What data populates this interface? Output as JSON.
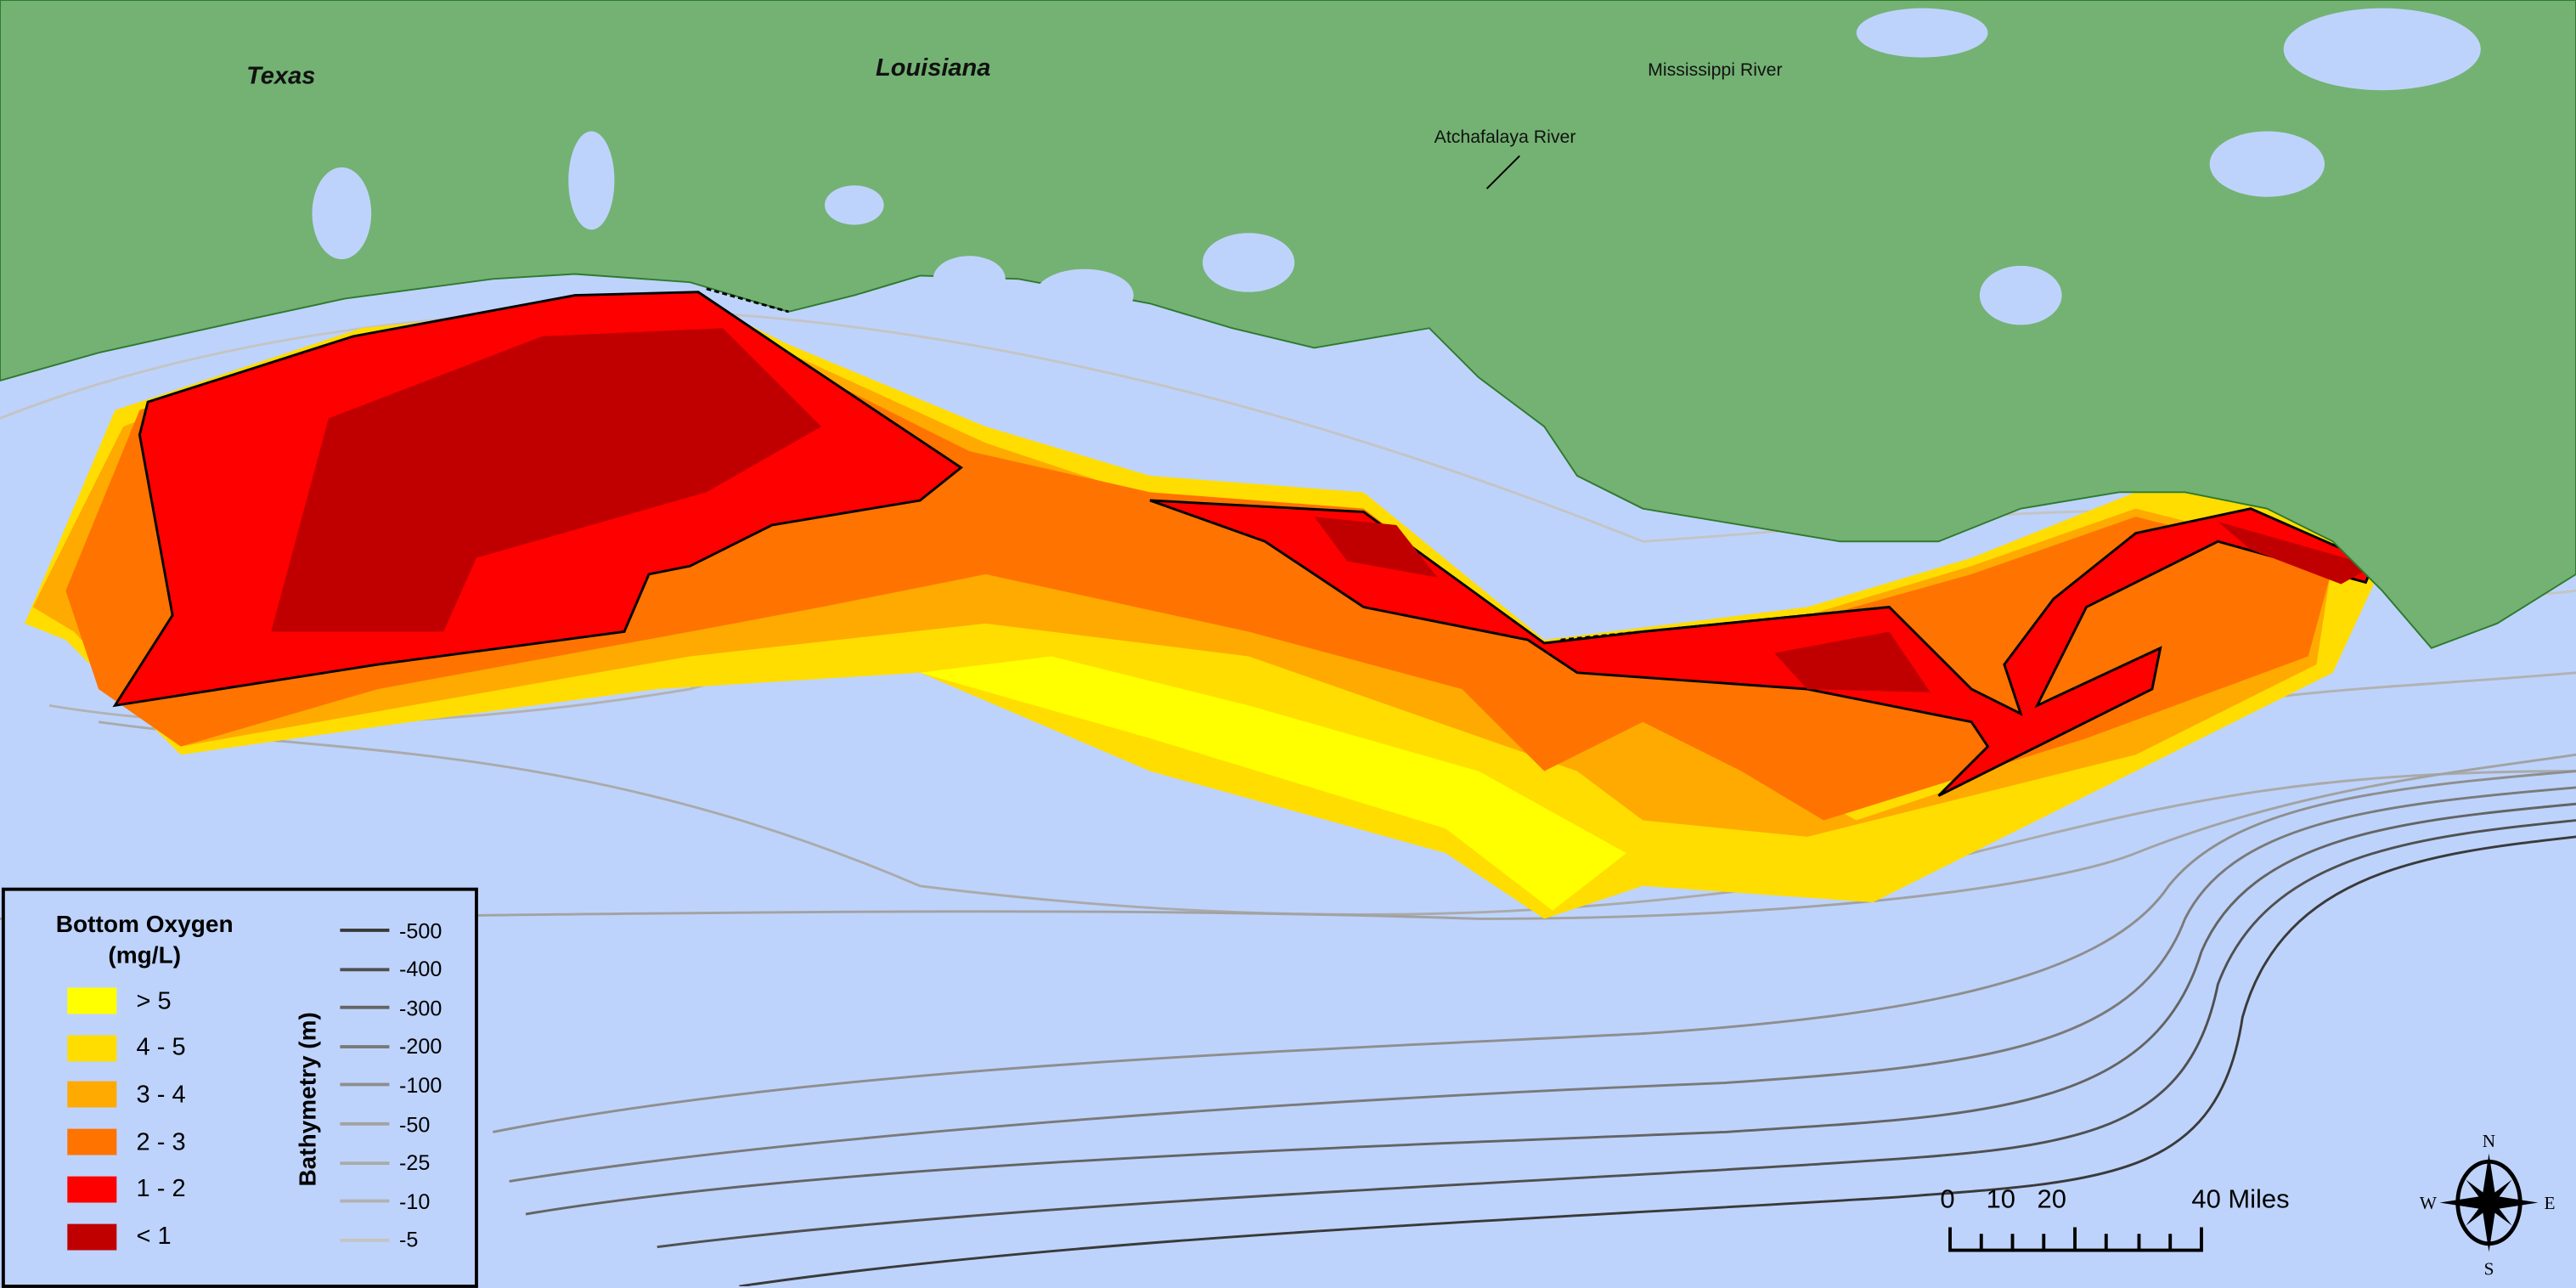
{
  "map": {
    "colors": {
      "water": "#bed3fb",
      "land": "#73b273",
      "outline": "#000000"
    },
    "place_labels": {
      "texas": "Texas",
      "louisiana": "Louisiana",
      "mississippi": "Mississippi River",
      "atchafalaya": "Atchafalaya River"
    }
  },
  "legend": {
    "oxygen_title": "Bottom Oxygen",
    "oxygen_unit": "(mg/L)",
    "classes": [
      {
        "label": "> 5",
        "color": "#ffff00"
      },
      {
        "label": "4 - 5",
        "color": "#ffdd00"
      },
      {
        "label": "3 - 4",
        "color": "#ffaa00"
      },
      {
        "label": "2 - 3",
        "color": "#ff7300"
      },
      {
        "label": "1 - 2",
        "color": "#ff0000"
      },
      {
        "label": "< 1",
        "color": "#c00000"
      }
    ],
    "bathymetry_title": "Bathymetry (m)",
    "depths": [
      {
        "label": "-500",
        "color": "#3a3a3a"
      },
      {
        "label": "-400",
        "color": "#505050"
      },
      {
        "label": "-300",
        "color": "#646464"
      },
      {
        "label": "-200",
        "color": "#7a7a7a"
      },
      {
        "label": "-100",
        "color": "#8e8e8e"
      },
      {
        "label": "-50",
        "color": "#a2a2a2"
      },
      {
        "label": "-25",
        "color": "#aaaaaa"
      },
      {
        "label": "-10",
        "color": "#b2b2b2"
      },
      {
        "label": "-5",
        "color": "#c4c4c4"
      }
    ]
  },
  "scale_bar": {
    "labels": [
      "0",
      "10",
      "20",
      "40 Miles"
    ]
  },
  "compass": {
    "n": "N",
    "s": "S",
    "e": "E",
    "w": "W"
  }
}
